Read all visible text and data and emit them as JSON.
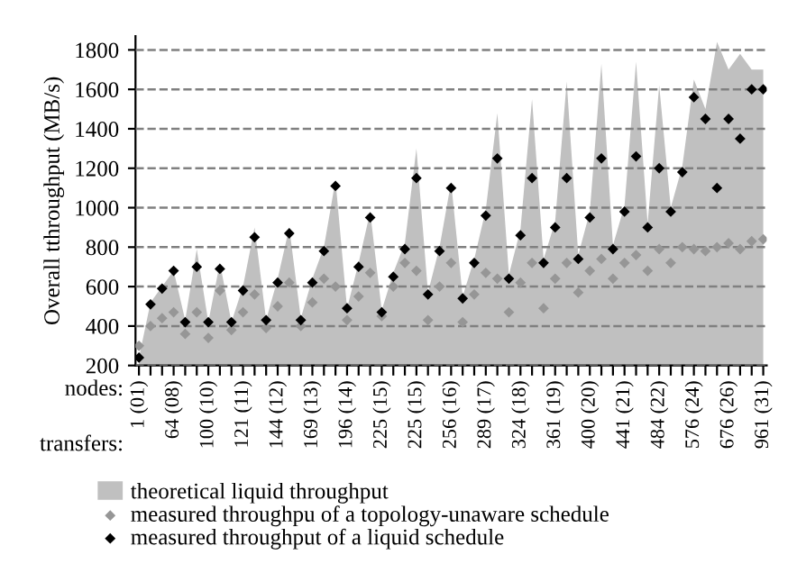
{
  "chart_data": {
    "type": "scatter",
    "ylabel": "Overall tthroughput (MB/s)",
    "annotations": [
      "nodes:",
      "transfers:"
    ],
    "ylim": [
      200,
      1870
    ],
    "yticks": [
      200,
      400,
      600,
      800,
      1000,
      1200,
      1400,
      1600,
      1800
    ],
    "categories": [
      "1 (01)",
      null,
      null,
      "64 (08)",
      null,
      null,
      "100 (10)",
      null,
      null,
      "121 (11)",
      null,
      null,
      "144 (12)",
      null,
      null,
      "169 (13)",
      null,
      null,
      "196 (14)",
      null,
      null,
      "225 (15)",
      null,
      null,
      "225 (15)",
      null,
      null,
      "256 (16)",
      null,
      null,
      "289 (17)",
      null,
      null,
      "324 (18)",
      null,
      null,
      "361 (19)",
      null,
      null,
      "400 (20)",
      null,
      null,
      "441 (21)",
      null,
      null,
      "484 (22)",
      null,
      null,
      "576 (24)",
      null,
      null,
      "676 (26)",
      null,
      null,
      "961 (31)"
    ],
    "grid": "y",
    "line_style": "dashed",
    "legend": "bottom",
    "series": [
      {
        "name": "theoretical liquid throughput",
        "type": "area",
        "color": "#c0c0c0",
        "values": [
          240,
          520,
          600,
          680,
          430,
          790,
          420,
          720,
          420,
          600,
          900,
          430,
          640,
          900,
          440,
          640,
          800,
          1140,
          490,
          720,
          980,
          480,
          670,
          820,
          1300,
          570,
          800,
          1130,
          550,
          740,
          990,
          1480,
          660,
          890,
          1550,
          740,
          930,
          1640,
          760,
          980,
          1730,
          810,
          1010,
          1740,
          920,
          1620,
          1000,
          1210,
          1650,
          1500,
          1840,
          1700,
          1780,
          1700,
          1700
        ]
      },
      {
        "name": "measured throughpu of a topology-unaware schedule",
        "color": "#969696",
        "marker": "diamond",
        "values": [
          300,
          400,
          440,
          470,
          360,
          470,
          340,
          580,
          380,
          470,
          560,
          390,
          500,
          620,
          400,
          520,
          640,
          600,
          430,
          550,
          670,
          450,
          600,
          720,
          680,
          430,
          600,
          720,
          420,
          560,
          670,
          640,
          470,
          620,
          720,
          490,
          640,
          720,
          570,
          680,
          740,
          640,
          720,
          760,
          680,
          790,
          720,
          800,
          790,
          780,
          800,
          820,
          790,
          830,
          840
        ]
      },
      {
        "name": "measured throughput of a liquid schedule",
        "color": "#000000",
        "marker": "diamond",
        "values": [
          240,
          510,
          590,
          680,
          420,
          700,
          420,
          690,
          420,
          580,
          850,
          430,
          620,
          870,
          430,
          620,
          780,
          1110,
          490,
          700,
          950,
          470,
          650,
          790,
          1150,
          560,
          780,
          1100,
          540,
          720,
          960,
          1250,
          640,
          860,
          1150,
          720,
          900,
          1150,
          740,
          950,
          1250,
          790,
          980,
          1260,
          900,
          1200,
          980,
          1180,
          1560,
          1450,
          1100,
          1450,
          1350,
          1600,
          1600
        ]
      }
    ]
  }
}
